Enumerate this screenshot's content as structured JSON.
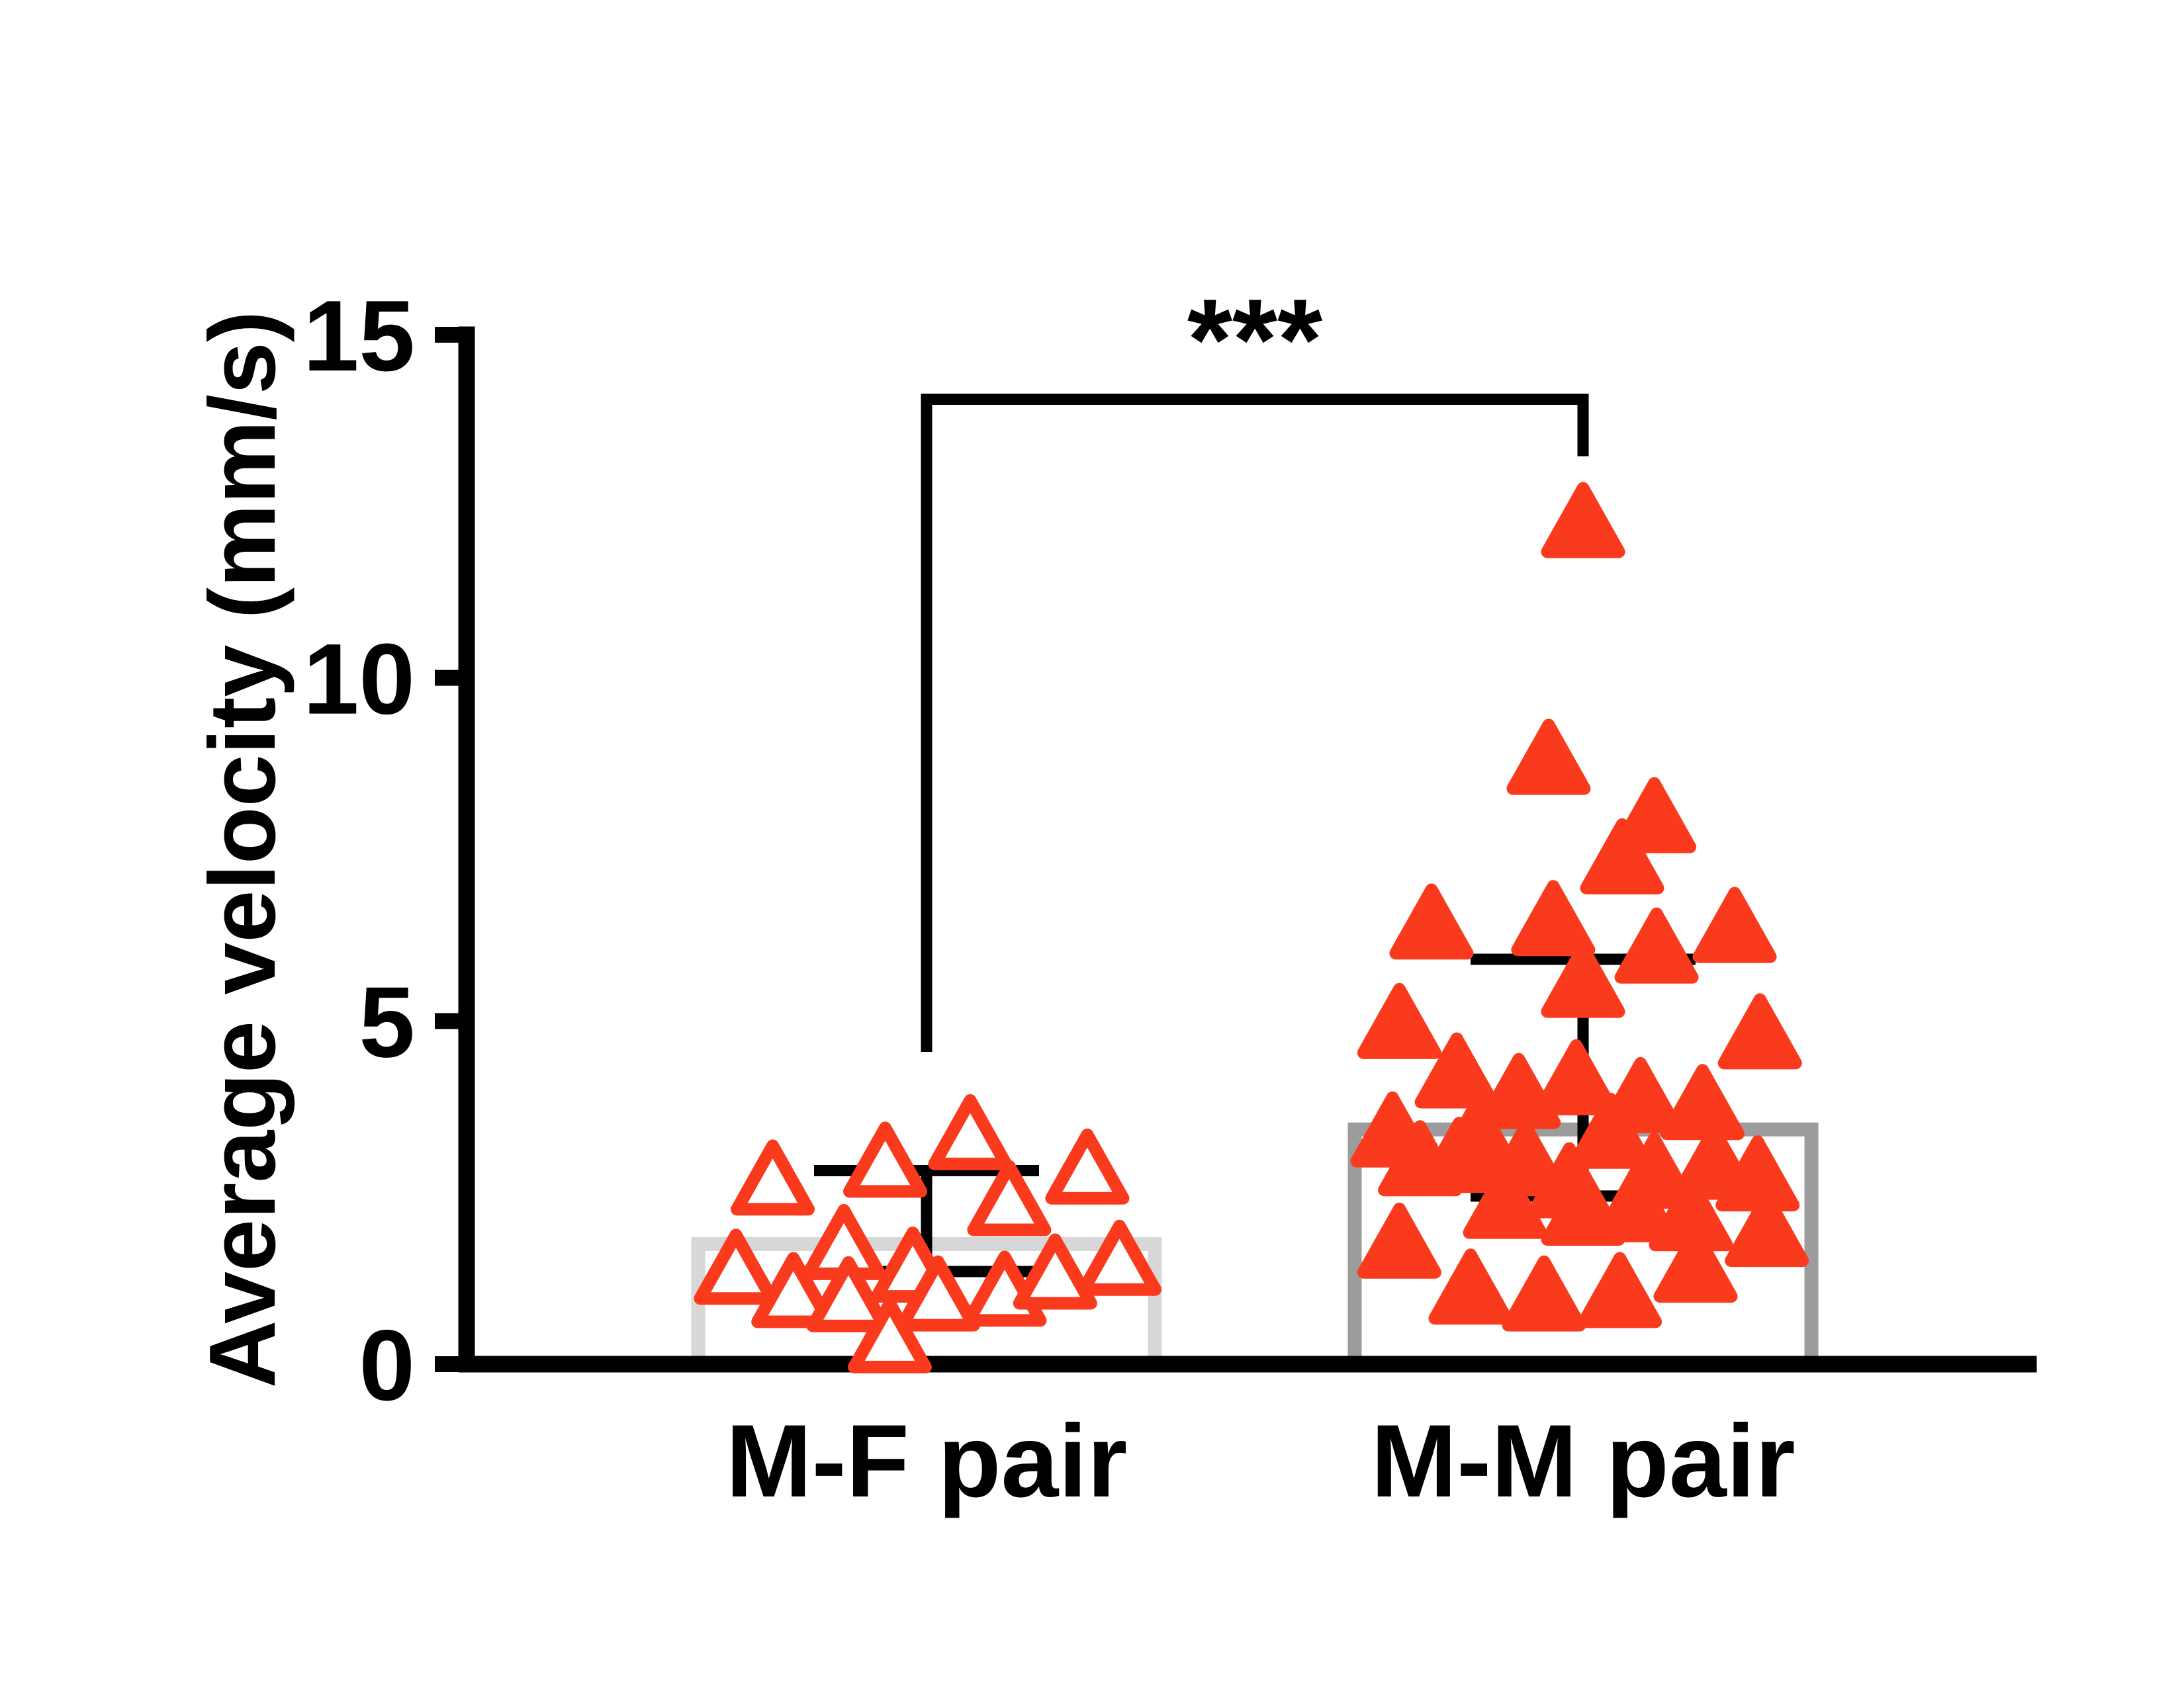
{
  "figure": {
    "background": "#FFFFFF"
  },
  "chart_data": {
    "type": "scatter",
    "title": "",
    "xlabel": "",
    "ylabel": "Average velocity (mm/s)",
    "ylim": [
      0,
      15
    ],
    "yticks": [
      0,
      5,
      10,
      15
    ],
    "grid": false,
    "legend": "none",
    "categories": [
      "M-F pair",
      "M-M pair"
    ],
    "marker_color": "#FA3A1C",
    "axis_color": "#000000",
    "error_bar_color": "#000000",
    "series": [
      {
        "name": "M-F pair",
        "marker": "open-triangle",
        "bar_outline_color": "#D7D7D7",
        "bar_mean": 1.75,
        "error_low": 1.35,
        "error_high": 2.82,
        "points": [
          [
            -0.67,
            2.72
          ],
          [
            -0.18,
            2.98
          ],
          [
            0.19,
            3.38
          ],
          [
            0.36,
            2.42
          ],
          [
            0.7,
            2.88
          ],
          [
            -0.83,
            1.42
          ],
          [
            -0.58,
            1.08
          ],
          [
            -0.36,
            1.78
          ],
          [
            -0.34,
            1.02
          ],
          [
            -0.06,
            1.45
          ],
          [
            0.05,
            1.03
          ],
          [
            0.34,
            1.1
          ],
          [
            0.56,
            1.35
          ],
          [
            0.84,
            1.55
          ],
          [
            -0.16,
            0.42
          ]
        ]
      },
      {
        "name": "M-M pair",
        "marker": "filled-triangle",
        "bar_outline_color": "#9C9C9C",
        "bar_mean": 3.42,
        "error_low": 2.45,
        "error_high": 5.9,
        "points": [
          [
            0.0,
            12.3
          ],
          [
            -0.15,
            8.85
          ],
          [
            0.31,
            8.0
          ],
          [
            0.17,
            7.4
          ],
          [
            -0.66,
            6.45
          ],
          [
            -0.13,
            6.5
          ],
          [
            0.66,
            6.4
          ],
          [
            0.32,
            6.1
          ],
          [
            0.0,
            5.6
          ],
          [
            -0.8,
            5.0
          ],
          [
            0.77,
            4.85
          ],
          [
            -0.55,
            4.28
          ],
          [
            -0.03,
            4.18
          ],
          [
            -0.28,
            3.98
          ],
          [
            0.25,
            3.92
          ],
          [
            0.52,
            3.82
          ],
          [
            -0.83,
            3.42
          ],
          [
            -0.46,
            3.36
          ],
          [
            0.12,
            3.4
          ],
          [
            -0.71,
            3.0
          ],
          [
            -0.54,
            3.05
          ],
          [
            -0.25,
            3.0
          ],
          [
            -0.06,
            2.68
          ],
          [
            0.31,
            2.82
          ],
          [
            0.57,
            2.95
          ],
          [
            0.76,
            2.78
          ],
          [
            -0.34,
            2.38
          ],
          [
            0.0,
            2.28
          ],
          [
            0.23,
            2.33
          ],
          [
            0.47,
            2.2
          ],
          [
            -0.8,
            1.8
          ],
          [
            0.8,
            1.97
          ],
          [
            -0.49,
            1.13
          ],
          [
            -0.17,
            1.03
          ],
          [
            0.16,
            1.08
          ],
          [
            0.49,
            1.45
          ]
        ]
      }
    ],
    "significance": {
      "label": "***",
      "between": [
        "M-F pair",
        "M-M pair"
      ],
      "left_start_y": 4.55,
      "bar_y": 14.06,
      "right_end_y": 13.23
    }
  }
}
